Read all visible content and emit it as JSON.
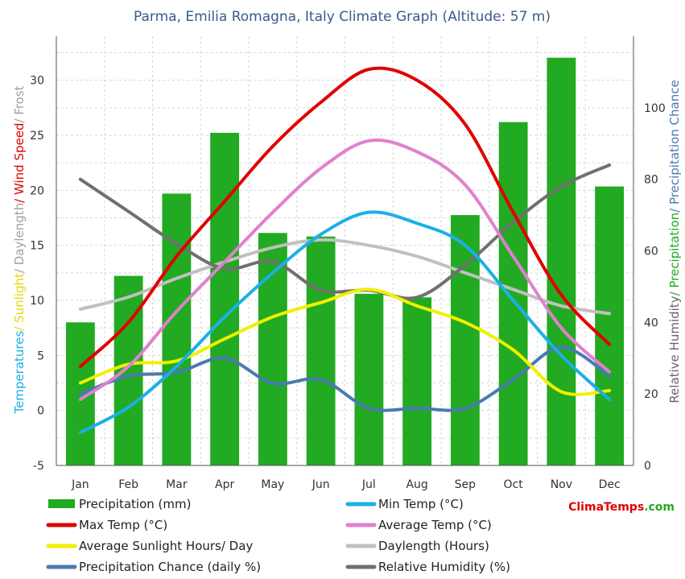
{
  "chart_data": {
    "type": "bar",
    "title": "Parma, Emilia Romagna, Italy Climate Graph (Altitude: 57 m)",
    "categories": [
      "Jan",
      "Feb",
      "Mar",
      "Apr",
      "May",
      "Jun",
      "Jul",
      "Aug",
      "Sep",
      "Oct",
      "Nov",
      "Dec"
    ],
    "left_axis": {
      "label_parts": [
        {
          "text": "Temperatures",
          "color": "#1ab0e8"
        },
        {
          "text": "/ Sunlight",
          "color": "#e6d800"
        },
        {
          "text": "/ Daylength",
          "color": "#a0a0a0"
        },
        {
          "text": "/ Wind Speed",
          "color": "#e00000"
        },
        {
          "text": "/ Frost",
          "color": "#a0a0a0"
        }
      ],
      "min": -5,
      "max": 34,
      "ticks": [
        "-5",
        "0",
        "5",
        "10",
        "15",
        "20",
        "25",
        "30"
      ]
    },
    "right_axis": {
      "label_parts": [
        {
          "text": "Relative Humidity",
          "color": "#666666"
        },
        {
          "text": "/ Precipitation",
          "color": "#22aa22"
        },
        {
          "text": "/ Precipitation Chance",
          "color": "#4a7ab0"
        }
      ],
      "min": 0,
      "max": 120,
      "ticks": [
        "0",
        "20",
        "40",
        "60",
        "80",
        "100"
      ]
    },
    "grid": true,
    "series": [
      {
        "name": "Precipitation (mm)",
        "type": "bar",
        "axis": "right",
        "color": "#22aa22",
        "values": [
          40,
          53,
          76,
          93,
          65,
          64,
          48,
          47,
          70,
          96,
          114,
          78
        ]
      },
      {
        "name": "Min Temp (°C)",
        "type": "line",
        "axis": "left",
        "color": "#1ab0e8",
        "values": [
          -2,
          0.3,
          4,
          8.5,
          12.5,
          16,
          18,
          17,
          15,
          10,
          5,
          1
        ]
      },
      {
        "name": "Max Temp (°C)",
        "type": "line",
        "axis": "left",
        "color": "#e00000",
        "values": [
          4,
          8,
          14,
          19,
          24,
          28,
          31,
          30,
          26,
          18,
          10.5,
          6
        ]
      },
      {
        "name": "Average Temp (°C)",
        "type": "line",
        "axis": "left",
        "color": "#e080d0",
        "values": [
          1,
          4,
          9,
          13.5,
          18,
          22,
          24.5,
          23.5,
          20.5,
          14,
          7.5,
          3.5
        ]
      },
      {
        "name": "Average Sunlight Hours/ Day",
        "type": "line",
        "axis": "left",
        "color": "#f0f000",
        "values": [
          2.5,
          4.2,
          4.5,
          6.5,
          8.5,
          9.8,
          11,
          9.5,
          8,
          5.5,
          1.7,
          1.8
        ]
      },
      {
        "name": "Daylength (Hours)",
        "type": "line",
        "axis": "left",
        "color": "#c0c0c0",
        "values": [
          9.2,
          10.3,
          12,
          13.5,
          14.8,
          15.5,
          15,
          14,
          12.5,
          11,
          9.5,
          8.8
        ]
      },
      {
        "name": "Precipitation Chance (daily %)",
        "type": "line",
        "axis": "right",
        "color": "#4a7ab0",
        "values": [
          20,
          25,
          26,
          30,
          23,
          24,
          16,
          16,
          16,
          24,
          33,
          25
        ]
      },
      {
        "name": "Relative Humidity (%)",
        "type": "line",
        "axis": "right",
        "color": "#707070",
        "values": [
          80,
          71,
          62,
          55,
          57,
          49,
          49,
          47,
          56,
          68,
          78,
          84
        ]
      }
    ],
    "brand": {
      "text_a": "Clima",
      "text_b": "Temps",
      "text_c": ".com",
      "color_a": "#e00000",
      "color_b": "#e00000",
      "color_c": "#22aa22"
    }
  }
}
